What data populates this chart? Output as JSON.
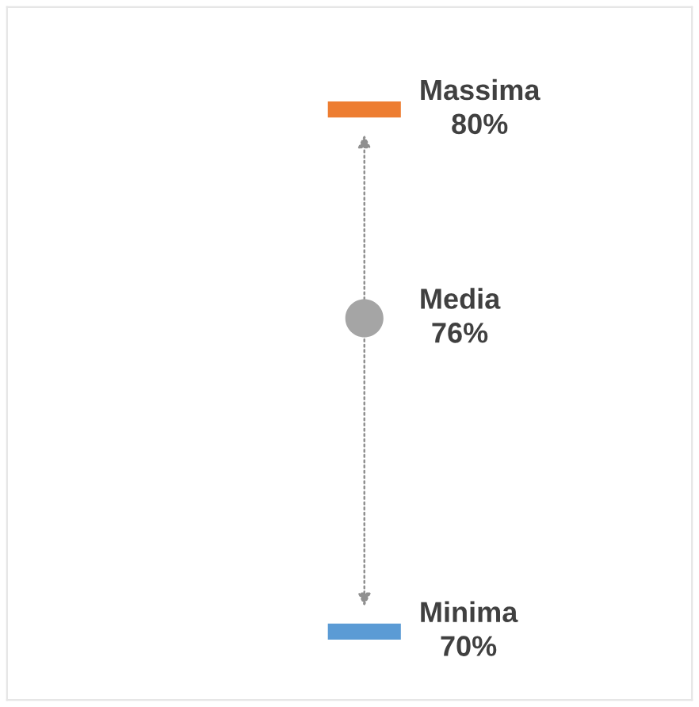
{
  "chart_data": {
    "type": "other",
    "categories": [
      null
    ],
    "series": [
      {
        "name": "Massima",
        "color": "#ed7d31",
        "values": [
          80
        ],
        "value_labels": [
          "80%"
        ],
        "marker": "square"
      },
      {
        "name": "Media",
        "color": "#a5a5a5",
        "values": [
          76
        ],
        "value_labels": [
          "76%"
        ],
        "marker": "circle"
      },
      {
        "name": "Minima",
        "color": "#5b9bd5",
        "values": [
          70
        ],
        "value_labels": [
          "70%"
        ],
        "marker": "square"
      }
    ]
  }
}
